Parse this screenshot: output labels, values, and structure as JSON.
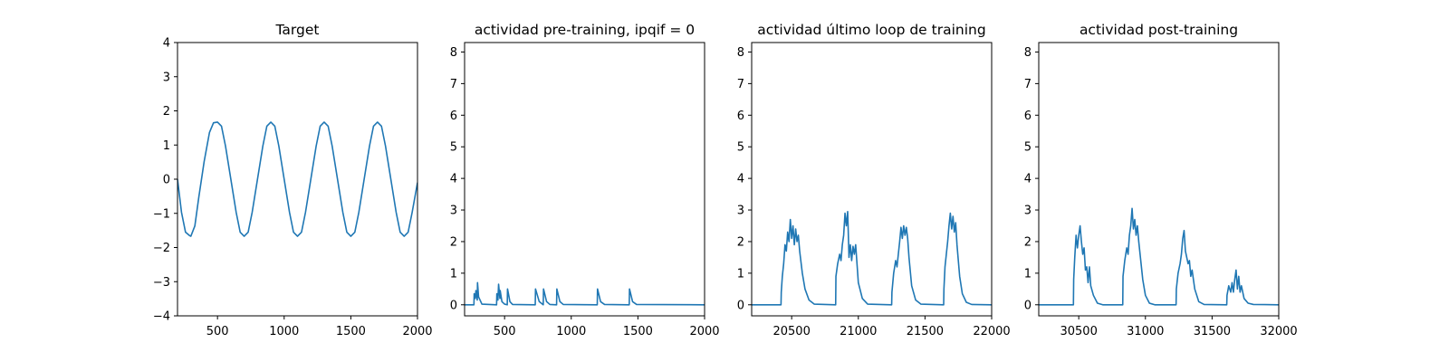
{
  "chart_data": [
    {
      "type": "line",
      "title": "Target",
      "xlabel": "",
      "ylabel": "",
      "xlim": [
        200,
        2000
      ],
      "ylim": [
        -4,
        4
      ],
      "xticks": [
        500,
        1000,
        1500,
        2000
      ],
      "yticks": [
        -4,
        -3,
        -2,
        -1,
        0,
        1,
        2,
        3,
        4
      ],
      "grid": false,
      "line_color": "#1f77b4",
      "series": [
        {
          "x": [
            200,
            230,
            260,
            290,
            300,
            330,
            360,
            400,
            440,
            470,
            500,
            530,
            560,
            600,
            640,
            670,
            700,
            730,
            760,
            800,
            840,
            870,
            900,
            930,
            960,
            1000,
            1040,
            1070,
            1100,
            1130,
            1160,
            1200,
            1240,
            1270,
            1300,
            1330,
            1360,
            1400,
            1440,
            1470,
            1500,
            1530,
            1560,
            1600,
            1640,
            1670,
            1700,
            1730,
            1760,
            1800,
            1840,
            1870,
            1900,
            1930,
            1960,
            2000
          ],
          "y": [
            0.0,
            -0.97,
            -1.55,
            -1.65,
            -1.67,
            -1.37,
            -0.52,
            0.52,
            1.37,
            1.65,
            1.67,
            1.55,
            0.97,
            0.0,
            -0.97,
            -1.55,
            -1.67,
            -1.55,
            -0.97,
            0.0,
            0.97,
            1.55,
            1.67,
            1.55,
            0.97,
            0.0,
            -0.97,
            -1.55,
            -1.67,
            -1.55,
            -0.97,
            0.0,
            0.97,
            1.55,
            1.67,
            1.55,
            0.97,
            0.0,
            -0.97,
            -1.55,
            -1.67,
            -1.55,
            -0.97,
            0.0,
            0.97,
            1.55,
            1.67,
            1.55,
            0.97,
            0.0,
            -0.97,
            -1.55,
            -1.67,
            -1.55,
            -0.97,
            -0.1
          ]
        }
      ]
    },
    {
      "type": "line",
      "title": "actividad pre-training, ipqif = 0",
      "xlabel": "",
      "ylabel": "",
      "xlim": [
        200,
        2000
      ],
      "ylim": [
        -0.35,
        8.3
      ],
      "xticks": [
        500,
        1000,
        1500,
        2000
      ],
      "yticks": [
        0,
        1,
        2,
        3,
        4,
        5,
        6,
        7,
        8
      ],
      "grid": false,
      "line_color": "#1f77b4",
      "series": [
        {
          "x": [
            200,
            270,
            272,
            280,
            285,
            295,
            297,
            305,
            330,
            440,
            442,
            450,
            455,
            465,
            467,
            480,
            500,
            520,
            522,
            540,
            560,
            730,
            732,
            760,
            790,
            792,
            815,
            840,
            890,
            892,
            915,
            940,
            1195,
            1197,
            1220,
            1250,
            1435,
            1437,
            1460,
            1490,
            2000
          ],
          "y": [
            0,
            0,
            0.35,
            0.2,
            0.45,
            0.15,
            0.7,
            0.25,
            0.02,
            0,
            0.35,
            0.15,
            0.65,
            0.2,
            0.45,
            0.1,
            0.02,
            0,
            0.5,
            0.1,
            0.01,
            0,
            0.5,
            0.1,
            0,
            0.5,
            0.1,
            0.01,
            0,
            0.5,
            0.1,
            0.01,
            0,
            0.5,
            0.1,
            0.01,
            0,
            0.5,
            0.1,
            0.01,
            0
          ]
        }
      ]
    },
    {
      "type": "line",
      "title": "actividad último loop de training",
      "xlabel": "",
      "ylabel": "",
      "xlim": [
        20200,
        22000
      ],
      "ylim": [
        -0.35,
        8.3
      ],
      "xticks": [
        20500,
        21000,
        21500,
        22000
      ],
      "yticks": [
        0,
        1,
        2,
        3,
        4,
        5,
        6,
        7,
        8
      ],
      "grid": false,
      "line_color": "#1f77b4",
      "series": [
        {
          "x": [
            20200,
            20420,
            20422,
            20430,
            20440,
            20450,
            20460,
            20470,
            20480,
            20490,
            20500,
            20510,
            20520,
            20530,
            20540,
            20550,
            20560,
            20580,
            20600,
            20630,
            20670,
            20830,
            20832,
            20845,
            20860,
            20870,
            20880,
            20890,
            20900,
            20910,
            20920,
            20930,
            20940,
            20950,
            20960,
            20970,
            20980,
            21000,
            21030,
            21070,
            21250,
            21252,
            21265,
            21280,
            21290,
            21300,
            21310,
            21320,
            21330,
            21340,
            21350,
            21360,
            21370,
            21380,
            21400,
            21430,
            21470,
            21640,
            21642,
            21650,
            21660,
            21670,
            21680,
            21690,
            21700,
            21710,
            21720,
            21730,
            21740,
            21750,
            21760,
            21780,
            21810,
            21850,
            22000
          ],
          "y": [
            0,
            0,
            0.4,
            0.9,
            1.3,
            1.9,
            1.7,
            2.3,
            2.0,
            2.7,
            2.1,
            2.5,
            1.9,
            2.4,
            2.0,
            2.2,
            1.7,
            1.0,
            0.5,
            0.15,
            0.02,
            0,
            0.9,
            1.3,
            1.6,
            1.4,
            1.9,
            2.2,
            2.9,
            2.5,
            2.95,
            1.5,
            1.9,
            1.4,
            1.85,
            1.6,
            1.9,
            0.7,
            0.2,
            0.02,
            0,
            0.4,
            1.0,
            1.4,
            1.2,
            1.6,
            2.0,
            2.45,
            2.1,
            2.5,
            2.2,
            2.45,
            2.1,
            1.5,
            0.6,
            0.15,
            0.02,
            0,
            0.5,
            1.2,
            1.6,
            2.0,
            2.5,
            2.9,
            2.4,
            2.8,
            2.3,
            2.6,
            1.9,
            1.4,
            0.9,
            0.35,
            0.08,
            0.01,
            0
          ]
        }
      ]
    },
    {
      "type": "line",
      "title": "actividad post-training",
      "xlabel": "",
      "ylabel": "",
      "xlim": [
        30200,
        32000
      ],
      "ylim": [
        -0.35,
        8.3
      ],
      "xticks": [
        30500,
        31000,
        31500,
        32000
      ],
      "yticks": [
        0,
        1,
        2,
        3,
        4,
        5,
        6,
        7,
        8
      ],
      "grid": false,
      "line_color": "#1f77b4",
      "series": [
        {
          "x": [
            30200,
            30460,
            30462,
            30470,
            30480,
            30490,
            30500,
            30510,
            30520,
            30530,
            30540,
            30550,
            30560,
            30570,
            30580,
            30590,
            30610,
            30640,
            30680,
            30830,
            30832,
            30845,
            30860,
            30870,
            30880,
            30890,
            30900,
            30910,
            30920,
            30930,
            30940,
            30950,
            30960,
            30970,
            30980,
            31000,
            31030,
            31070,
            31230,
            31232,
            31245,
            31260,
            31270,
            31280,
            31290,
            31300,
            31310,
            31320,
            31330,
            31340,
            31350,
            31370,
            31400,
            31440,
            31610,
            31612,
            31625,
            31640,
            31650,
            31660,
            31670,
            31680,
            31690,
            31700,
            31710,
            31720,
            31740,
            31770,
            31810,
            32000
          ],
          "y": [
            0,
            0,
            0.8,
            1.5,
            2.2,
            1.8,
            2.2,
            2.5,
            2.0,
            1.6,
            1.8,
            1.1,
            1.2,
            0.7,
            1.2,
            0.6,
            0.3,
            0.05,
            0,
            0,
            0.9,
            1.4,
            1.8,
            1.6,
            2.2,
            2.5,
            3.05,
            2.4,
            2.7,
            2.2,
            2.5,
            2.0,
            1.6,
            1.2,
            0.8,
            0.3,
            0.05,
            0,
            0,
            0.5,
            1.0,
            1.3,
            1.6,
            2.1,
            2.35,
            1.7,
            1.5,
            1.3,
            1.4,
            0.9,
            1.1,
            0.5,
            0.1,
            0.01,
            0,
            0.3,
            0.6,
            0.4,
            0.7,
            0.4,
            0.8,
            1.1,
            0.5,
            0.9,
            0.4,
            0.6,
            0.2,
            0.05,
            0.01,
            0
          ]
        }
      ]
    }
  ]
}
